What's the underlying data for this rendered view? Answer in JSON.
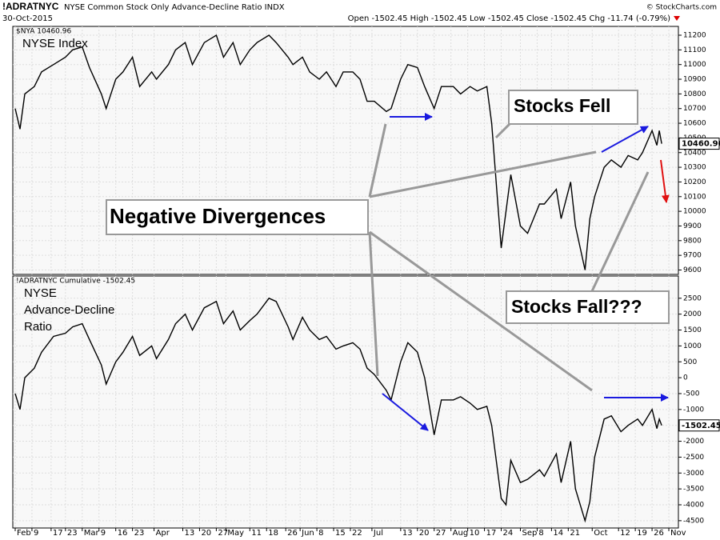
{
  "header": {
    "symbol": "!ADRATNYC",
    "description": "NYSE Common Stock Only Advance-Decline Ratio INDX",
    "date": "30-Oct-2015",
    "quote": "Open -1502.45 High -1502.45 Low -1502.45 Close -1502.45 Chg -11.74 (-0.79%)",
    "source": "© StockCharts.com"
  },
  "annotations": {
    "divergence": "Negative Divergences",
    "fell": "Stocks Fell",
    "fall": "Stocks Fall???"
  },
  "chart_data": [
    {
      "type": "line",
      "title": "NYSE Index",
      "legend": "$NYA 10460.96",
      "xlim": [
        "2015-02-01",
        "2015-11-06"
      ],
      "ylim": [
        9570,
        11260
      ],
      "yticks": [
        9600,
        9700,
        9800,
        9900,
        10000,
        10100,
        10200,
        10300,
        10400,
        10500,
        10600,
        10700,
        10800,
        10900,
        11000,
        11100,
        11200
      ],
      "grid": true,
      "x": [
        "2015-02-02",
        "2015-02-04",
        "2015-02-06",
        "2015-02-10",
        "2015-02-13",
        "2015-02-18",
        "2015-02-23",
        "2015-02-26",
        "2015-03-02",
        "2015-03-05",
        "2015-03-10",
        "2015-03-12",
        "2015-03-16",
        "2015-03-19",
        "2015-03-23",
        "2015-03-26",
        "2015-03-31",
        "2015-04-02",
        "2015-04-07",
        "2015-04-10",
        "2015-04-14",
        "2015-04-17",
        "2015-04-22",
        "2015-04-27",
        "2015-04-30",
        "2015-05-04",
        "2015-05-07",
        "2015-05-11",
        "2015-05-14",
        "2015-05-19",
        "2015-05-22",
        "2015-05-27",
        "2015-05-29",
        "2015-06-02",
        "2015-06-05",
        "2015-06-09",
        "2015-06-12",
        "2015-06-16",
        "2015-06-19",
        "2015-06-23",
        "2015-06-26",
        "2015-06-29",
        "2015-07-02",
        "2015-07-07",
        "2015-07-09",
        "2015-07-13",
        "2015-07-16",
        "2015-07-20",
        "2015-07-23",
        "2015-07-27",
        "2015-07-30",
        "2015-08-04",
        "2015-08-07",
        "2015-08-11",
        "2015-08-14",
        "2015-08-18",
        "2015-08-20",
        "2015-08-24",
        "2015-08-26",
        "2015-08-28",
        "2015-09-01",
        "2015-09-04",
        "2015-09-09",
        "2015-09-11",
        "2015-09-16",
        "2015-09-18",
        "2015-09-22",
        "2015-09-24",
        "2015-09-28",
        "2015-09-30",
        "2015-10-02",
        "2015-10-06",
        "2015-10-09",
        "2015-10-13",
        "2015-10-16",
        "2015-10-20",
        "2015-10-22",
        "2015-10-26",
        "2015-10-28",
        "2015-10-29",
        "2015-10-30"
      ],
      "series": [
        {
          "name": "NYSE Index",
          "color": "#000000",
          "values": [
            10700,
            10560,
            10800,
            10850,
            10950,
            11000,
            11050,
            11100,
            11120,
            10980,
            10800,
            10700,
            10900,
            10950,
            11050,
            10850,
            10950,
            10900,
            11000,
            11100,
            11150,
            11000,
            11150,
            11200,
            11050,
            11150,
            11000,
            11100,
            11150,
            11200,
            11150,
            11050,
            11000,
            11050,
            10950,
            10900,
            10950,
            10850,
            10950,
            10950,
            10900,
            10750,
            10750,
            10680,
            10700,
            10900,
            11000,
            10980,
            10850,
            10700,
            10850,
            10850,
            10800,
            10850,
            10820,
            10850,
            10600,
            9750,
            10000,
            10250,
            9900,
            9850,
            10050,
            10050,
            10150,
            9950,
            10200,
            9900,
            9600,
            9950,
            10100,
            10300,
            10350,
            10300,
            10380,
            10350,
            10400,
            10550,
            10450,
            10550,
            10460.96
          ]
        }
      ]
    },
    {
      "type": "line",
      "title": [
        "NYSE",
        "Advance-Decline",
        "Ratio"
      ],
      "legend": "!ADRATNYC Cumulative -1502.45",
      "xlim": [
        "2015-02-01",
        "2015-11-06"
      ],
      "ylim": [
        -4730,
        3200
      ],
      "yticks": [
        -4500,
        -4000,
        -3500,
        -3000,
        -2500,
        -2000,
        -1500,
        -1000,
        -500,
        0,
        500,
        1000,
        1500,
        2000,
        2500
      ],
      "grid": true,
      "xticks": [
        {
          "value": "2015-02-02",
          "label": "Feb"
        },
        {
          "value": "2015-02-09",
          "label": "9"
        },
        {
          "value": "2015-02-17",
          "label": "17"
        },
        {
          "value": "2015-02-23",
          "label": "23"
        },
        {
          "value": "2015-03-02",
          "label": "Mar"
        },
        {
          "value": "2015-03-09",
          "label": "9"
        },
        {
          "value": "2015-03-16",
          "label": "16"
        },
        {
          "value": "2015-03-23",
          "label": "23"
        },
        {
          "value": "2015-04-01",
          "label": "Apr"
        },
        {
          "value": "2015-04-13",
          "label": "13"
        },
        {
          "value": "2015-04-20",
          "label": "20"
        },
        {
          "value": "2015-04-27",
          "label": "27"
        },
        {
          "value": "2015-05-01",
          "label": "May"
        },
        {
          "value": "2015-05-11",
          "label": "11"
        },
        {
          "value": "2015-05-18",
          "label": "18"
        },
        {
          "value": "2015-05-26",
          "label": "26"
        },
        {
          "value": "2015-06-01",
          "label": "Jun"
        },
        {
          "value": "2015-06-08",
          "label": "8"
        },
        {
          "value": "2015-06-15",
          "label": "15"
        },
        {
          "value": "2015-06-22",
          "label": "22"
        },
        {
          "value": "2015-07-01",
          "label": "Jul"
        },
        {
          "value": "2015-07-13",
          "label": "13"
        },
        {
          "value": "2015-07-20",
          "label": "20"
        },
        {
          "value": "2015-07-27",
          "label": "27"
        },
        {
          "value": "2015-08-03",
          "label": "Aug"
        },
        {
          "value": "2015-08-10",
          "label": "10"
        },
        {
          "value": "2015-08-17",
          "label": "17"
        },
        {
          "value": "2015-08-24",
          "label": "24"
        },
        {
          "value": "2015-09-01",
          "label": "Sep"
        },
        {
          "value": "2015-09-08",
          "label": "8"
        },
        {
          "value": "2015-09-14",
          "label": "14"
        },
        {
          "value": "2015-09-21",
          "label": "21"
        },
        {
          "value": "2015-10-01",
          "label": "Oct"
        },
        {
          "value": "2015-10-12",
          "label": "12"
        },
        {
          "value": "2015-10-19",
          "label": "19"
        },
        {
          "value": "2015-10-26",
          "label": "26"
        },
        {
          "value": "2015-11-02",
          "label": "Nov"
        }
      ],
      "x": [
        "2015-02-02",
        "2015-02-04",
        "2015-02-06",
        "2015-02-10",
        "2015-02-13",
        "2015-02-18",
        "2015-02-23",
        "2015-02-26",
        "2015-03-02",
        "2015-03-05",
        "2015-03-10",
        "2015-03-12",
        "2015-03-16",
        "2015-03-19",
        "2015-03-23",
        "2015-03-26",
        "2015-03-31",
        "2015-04-02",
        "2015-04-07",
        "2015-04-10",
        "2015-04-14",
        "2015-04-17",
        "2015-04-22",
        "2015-04-27",
        "2015-04-30",
        "2015-05-04",
        "2015-05-07",
        "2015-05-11",
        "2015-05-14",
        "2015-05-19",
        "2015-05-22",
        "2015-05-27",
        "2015-05-29",
        "2015-06-02",
        "2015-06-05",
        "2015-06-09",
        "2015-06-12",
        "2015-06-16",
        "2015-06-19",
        "2015-06-23",
        "2015-06-26",
        "2015-06-29",
        "2015-07-02",
        "2015-07-07",
        "2015-07-09",
        "2015-07-13",
        "2015-07-16",
        "2015-07-20",
        "2015-07-23",
        "2015-07-27",
        "2015-07-30",
        "2015-08-04",
        "2015-08-07",
        "2015-08-11",
        "2015-08-14",
        "2015-08-18",
        "2015-08-20",
        "2015-08-24",
        "2015-08-26",
        "2015-08-28",
        "2015-09-01",
        "2015-09-04",
        "2015-09-09",
        "2015-09-11",
        "2015-09-16",
        "2015-09-18",
        "2015-09-22",
        "2015-09-24",
        "2015-09-28",
        "2015-09-30",
        "2015-10-02",
        "2015-10-06",
        "2015-10-09",
        "2015-10-13",
        "2015-10-16",
        "2015-10-20",
        "2015-10-22",
        "2015-10-26",
        "2015-10-28",
        "2015-10-29",
        "2015-10-30"
      ],
      "series": [
        {
          "name": "!ADRATNYC Cumulative",
          "color": "#000000",
          "values": [
            -500,
            -1000,
            0,
            300,
            800,
            1300,
            1400,
            1600,
            1700,
            1200,
            400,
            -200,
            500,
            800,
            1300,
            700,
            1000,
            600,
            1200,
            1700,
            2000,
            1500,
            2200,
            2400,
            1700,
            2100,
            1500,
            1800,
            2000,
            2500,
            2400,
            1600,
            1200,
            1900,
            1500,
            1200,
            1300,
            900,
            1000,
            1100,
            900,
            300,
            100,
            -400,
            -700,
            500,
            1100,
            800,
            0,
            -1800,
            -700,
            -700,
            -600,
            -800,
            -1000,
            -900,
            -1500,
            -3800,
            -4000,
            -2600,
            -3300,
            -3200,
            -2900,
            -3100,
            -2400,
            -3300,
            -2000,
            -3500,
            -4500,
            -3900,
            -2500,
            -1300,
            -1200,
            -1700,
            -1500,
            -1300,
            -1500,
            -1000,
            -1600,
            -1300,
            -1502.45
          ]
        }
      ]
    }
  ]
}
